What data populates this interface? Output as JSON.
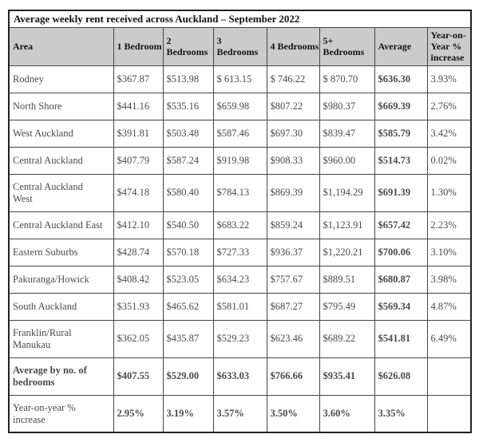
{
  "title": "Average weekly rent received across Auckland – September 2022",
  "table": {
    "columns": [
      "Area",
      "1 Bedroom",
      "2 Bedrooms",
      "3 Bedrooms",
      "4 Bedrooms",
      "5+ Bedrooms",
      "Average",
      "Year-on-Year % increase"
    ],
    "rows": [
      {
        "label": "Rodney",
        "two_line": false,
        "label_bold": false,
        "values_bold": false,
        "values": [
          "$367.87",
          "$513.98",
          "$ 613.15",
          "$ 746.22",
          "$ 870.70",
          "$636.30",
          "3.93%"
        ]
      },
      {
        "label": "North Shore",
        "two_line": false,
        "label_bold": false,
        "values_bold": false,
        "values": [
          "$441.16",
          "$535.16",
          "$659.98",
          "$807.22",
          "$980.37",
          "$669.39",
          "2.76%"
        ]
      },
      {
        "label": "West Auckland",
        "two_line": false,
        "label_bold": false,
        "values_bold": false,
        "values": [
          "$391.81",
          "$503.48",
          "$587.46",
          "$697.30",
          "$839.47",
          "$585.79",
          "3.42%"
        ]
      },
      {
        "label": "Central Auckland",
        "two_line": false,
        "label_bold": false,
        "values_bold": false,
        "values": [
          "$407.79",
          "$587.24",
          "$919.98",
          "$908.33",
          "$960.00",
          "$514.73",
          "0.02%"
        ]
      },
      {
        "label": "Central Auckland West",
        "two_line": true,
        "label_bold": false,
        "values_bold": false,
        "values": [
          "$474.18",
          "$580.40",
          "$784.13",
          "$869.39",
          "$1,194.29",
          "$691.39",
          "1.30%"
        ]
      },
      {
        "label": "Central Auckland East",
        "two_line": false,
        "label_bold": false,
        "values_bold": false,
        "values": [
          "$412.10",
          "$540.50",
          "$683.22",
          "$859.24",
          "$1,123.91",
          "$657.42",
          "2.23%"
        ]
      },
      {
        "label": "Eastern Suburbs",
        "two_line": false,
        "label_bold": false,
        "values_bold": false,
        "values": [
          "$428.74",
          "$570.18",
          "$727.33",
          "$936.37",
          "$1,220.21",
          "$700.06",
          "3.10%"
        ]
      },
      {
        "label": "Pakuranga/Howick",
        "two_line": false,
        "label_bold": false,
        "values_bold": false,
        "values": [
          "$408.42",
          "$523.05",
          "$634.23",
          "$757.67",
          "$889.51",
          "$680.87",
          "3.98%"
        ]
      },
      {
        "label": "South Auckland",
        "two_line": false,
        "label_bold": false,
        "values_bold": false,
        "values": [
          "$351.93",
          "$465.62",
          "$581.01",
          "$687.27",
          "$795.49",
          "$569.34",
          "4.87%"
        ]
      },
      {
        "label": "Franklin/Rural Manukau",
        "two_line": true,
        "label_bold": false,
        "values_bold": false,
        "values": [
          "$362.05",
          "$435.87",
          "$529.23",
          "$623.46",
          "$689.22",
          "$541.81",
          "6.49%"
        ]
      },
      {
        "label": "Average by no. of bedrooms",
        "two_line": true,
        "label_bold": true,
        "values_bold": true,
        "values": [
          "$407.55",
          "$529.00",
          "$633.03",
          "$766.66",
          "$935.41",
          "$626.08",
          ""
        ]
      },
      {
        "label": "Year-on-year % increase",
        "two_line": true,
        "label_bold": false,
        "values_bold": true,
        "values": [
          "2.95%",
          "3.19%",
          "3.57%",
          "3.50%",
          "3.60%",
          "3.35%",
          ""
        ]
      }
    ]
  }
}
